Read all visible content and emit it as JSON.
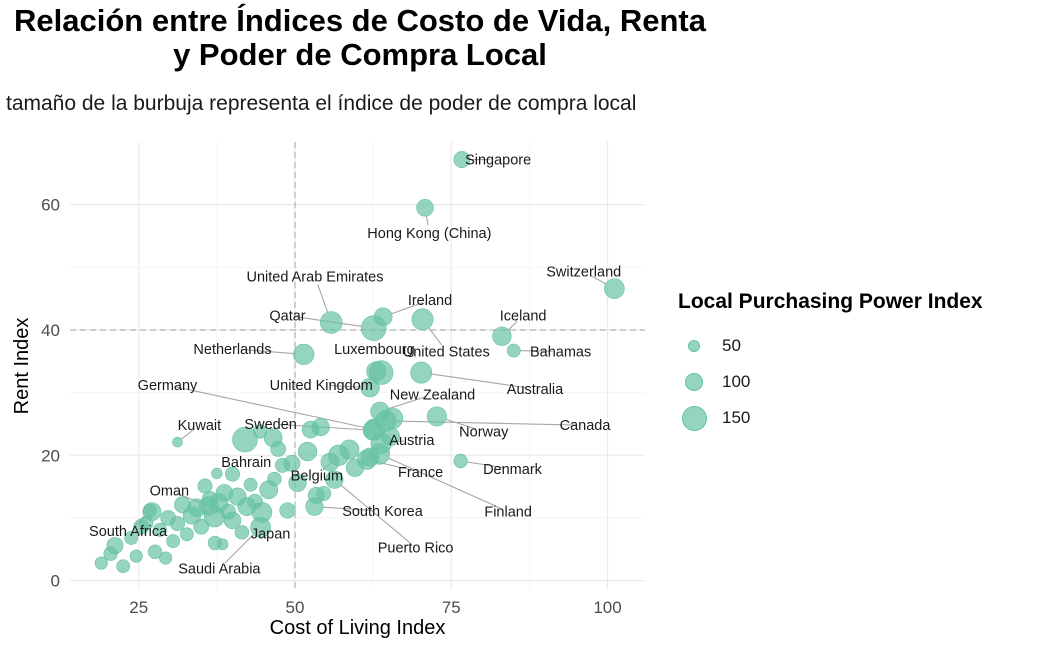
{
  "title_line1": "Relación entre Índices de Costo de Vida, Renta",
  "title_line2": "y Poder de Compra Local",
  "subtitle": "tamaño de la burbuja representa el índice de poder de compra local",
  "colors": {
    "point": "#66c2a5",
    "grid": "#ebebeb",
    "ref_line": "#b3b3b3",
    "label_line": "#a6a6a6"
  },
  "legend": {
    "title": "Local Purchasing Power Index",
    "items": [
      {
        "label": "50",
        "value": 50
      },
      {
        "label": "100",
        "value": 100
      },
      {
        "label": "150",
        "value": 150
      }
    ]
  },
  "chart_data": {
    "type": "scatter",
    "xlabel": "Cost of Living Index",
    "ylabel": "Rent Index",
    "xlim": [
      14,
      106
    ],
    "ylim": [
      -1.5,
      70
    ],
    "xticks": [
      25,
      50,
      75,
      100
    ],
    "yticks": [
      0,
      20,
      40,
      60
    ],
    "grid": true,
    "reference_lines": {
      "x": 50,
      "y": 40
    },
    "labeled_points": [
      {
        "country": "Singapore",
        "x": 76.7,
        "y": 67.2,
        "size": 80,
        "label_x": 82.5,
        "label_y": 67.2
      },
      {
        "country": "Hong Kong (China)",
        "x": 70.8,
        "y": 59.5,
        "size": 85,
        "label_x": 71.5,
        "label_y": 55.5
      },
      {
        "country": "Switzerland",
        "x": 101.1,
        "y": 46.6,
        "size": 110,
        "label_x": 96.2,
        "label_y": 49.3
      },
      {
        "country": "United Arab Emirates",
        "x": 55.8,
        "y": 41.2,
        "size": 125,
        "label_x": 53.2,
        "label_y": 48.5
      },
      {
        "country": "Ireland",
        "x": 64.1,
        "y": 42.1,
        "size": 95,
        "label_x": 71.6,
        "label_y": 44.8
      },
      {
        "country": "Iceland",
        "x": 83.1,
        "y": 39.0,
        "size": 100,
        "label_x": 86.5,
        "label_y": 42.3
      },
      {
        "country": "Qatar",
        "x": 62.6,
        "y": 40.3,
        "size": 150,
        "label_x": 48.8,
        "label_y": 42.3
      },
      {
        "country": "United States",
        "x": 70.4,
        "y": 41.7,
        "size": 120,
        "label_x": 74.2,
        "label_y": 36.6
      },
      {
        "country": "Bahamas",
        "x": 85.0,
        "y": 36.7,
        "size": 55,
        "label_x": 92.5,
        "label_y": 36.6
      },
      {
        "country": "Netherlands",
        "x": 51.4,
        "y": 36.1,
        "size": 115,
        "label_x": 40.0,
        "label_y": 37.0
      },
      {
        "country": "Luxembourg",
        "x": 63.8,
        "y": 33.2,
        "size": 140,
        "label_x": 62.7,
        "label_y": 37.0
      },
      {
        "country": "Australia",
        "x": 70.2,
        "y": 33.2,
        "size": 120,
        "label_x": 88.4,
        "label_y": 30.6
      },
      {
        "country": "Germany",
        "x": 62.7,
        "y": 24.1,
        "size": 120,
        "label_x": 29.6,
        "label_y": 31.2
      },
      {
        "country": "United Kingdom",
        "x": 62.0,
        "y": 30.8,
        "size": 100,
        "label_x": 54.2,
        "label_y": 31.2
      },
      {
        "country": "New Zealand",
        "x": 63.6,
        "y": 27.0,
        "size": 100,
        "label_x": 72.0,
        "label_y": 29.7
      },
      {
        "country": "Canada",
        "x": 64.5,
        "y": 25.5,
        "size": 115,
        "label_x": 96.4,
        "label_y": 24.8
      },
      {
        "country": "Norway",
        "x": 72.7,
        "y": 26.2,
        "size": 105,
        "label_x": 80.2,
        "label_y": 23.8
      },
      {
        "country": "Kuwait",
        "x": 31.2,
        "y": 22.1,
        "size": 30,
        "label_x": 34.7,
        "label_y": 24.8
      },
      {
        "country": "Sweden",
        "x": 62.5,
        "y": 24.0,
        "size": 110,
        "label_x": 46.1,
        "label_y": 25.0
      },
      {
        "country": "Austria",
        "x": 63.8,
        "y": 21.9,
        "size": 115,
        "label_x": 68.7,
        "label_y": 22.4
      },
      {
        "country": "Denmark",
        "x": 76.5,
        "y": 19.1,
        "size": 60,
        "label_x": 84.8,
        "label_y": 17.8
      },
      {
        "country": "Bahrain",
        "x": 40.0,
        "y": 17.0,
        "size": 65,
        "label_x": 42.2,
        "label_y": 18.9
      },
      {
        "country": "France",
        "x": 61.5,
        "y": 19.3,
        "size": 105,
        "label_x": 70.1,
        "label_y": 17.3
      },
      {
        "country": "Belgium",
        "x": 57.0,
        "y": 20.0,
        "size": 115,
        "label_x": 53.5,
        "label_y": 16.8
      },
      {
        "country": "Finland",
        "x": 63.5,
        "y": 20.2,
        "size": 115,
        "label_x": 84.1,
        "label_y": 11.0
      },
      {
        "country": "Oman",
        "x": 36.2,
        "y": 11.9,
        "size": 100,
        "label_x": 29.9,
        "label_y": 14.4
      },
      {
        "country": "South Korea",
        "x": 53.1,
        "y": 11.8,
        "size": 90,
        "label_x": 64.0,
        "label_y": 11.1
      },
      {
        "country": "South Africa",
        "x": 27.1,
        "y": 11.0,
        "size": 95,
        "label_x": 23.3,
        "label_y": 7.9
      },
      {
        "country": "Japan",
        "x": 44.7,
        "y": 10.9,
        "size": 110,
        "label_x": 46.1,
        "label_y": 7.5
      },
      {
        "country": "Puerto Rico",
        "x": 56.3,
        "y": 16.1,
        "size": 90,
        "label_x": 69.3,
        "label_y": 5.3
      },
      {
        "country": "Saudi Arabia",
        "x": 44.5,
        "y": 8.5,
        "size": 110,
        "label_x": 37.9,
        "label_y": 1.9
      }
    ],
    "other_points": [
      {
        "x": 19.0,
        "y": 2.8,
        "size": 50
      },
      {
        "x": 20.5,
        "y": 4.3,
        "size": 60
      },
      {
        "x": 21.2,
        "y": 5.6,
        "size": 80
      },
      {
        "x": 22.5,
        "y": 2.3,
        "size": 55
      },
      {
        "x": 23.8,
        "y": 6.8,
        "size": 55
      },
      {
        "x": 24.6,
        "y": 3.9,
        "size": 50
      },
      {
        "x": 25.4,
        "y": 8.6,
        "size": 70
      },
      {
        "x": 26.2,
        "y": 9.2,
        "size": 60
      },
      {
        "x": 26.8,
        "y": 11.2,
        "size": 55
      },
      {
        "x": 27.6,
        "y": 4.6,
        "size": 60
      },
      {
        "x": 28.4,
        "y": 8.1,
        "size": 55
      },
      {
        "x": 29.3,
        "y": 3.6,
        "size": 50
      },
      {
        "x": 29.7,
        "y": 10.0,
        "size": 70
      },
      {
        "x": 30.5,
        "y": 6.3,
        "size": 55
      },
      {
        "x": 31.2,
        "y": 9.1,
        "size": 65
      },
      {
        "x": 32.0,
        "y": 12.1,
        "size": 80
      },
      {
        "x": 32.7,
        "y": 7.4,
        "size": 55
      },
      {
        "x": 33.5,
        "y": 10.4,
        "size": 90
      },
      {
        "x": 34.3,
        "y": 11.6,
        "size": 95
      },
      {
        "x": 35.0,
        "y": 8.6,
        "size": 70
      },
      {
        "x": 35.6,
        "y": 15.1,
        "size": 65
      },
      {
        "x": 36.4,
        "y": 13.0,
        "size": 75
      },
      {
        "x": 37.1,
        "y": 10.2,
        "size": 115
      },
      {
        "x": 37.8,
        "y": 12.4,
        "size": 100
      },
      {
        "x": 37.2,
        "y": 6.0,
        "size": 60
      },
      {
        "x": 37.5,
        "y": 17.1,
        "size": 35
      },
      {
        "x": 38.4,
        "y": 5.8,
        "size": 40
      },
      {
        "x": 38.7,
        "y": 14.0,
        "size": 85
      },
      {
        "x": 39.3,
        "y": 11.0,
        "size": 70
      },
      {
        "x": 40.0,
        "y": 9.6,
        "size": 85
      },
      {
        "x": 40.8,
        "y": 13.4,
        "size": 90
      },
      {
        "x": 41.5,
        "y": 7.7,
        "size": 60
      },
      {
        "x": 42.0,
        "y": 22.5,
        "size": 150
      },
      {
        "x": 42.3,
        "y": 11.8,
        "size": 95
      },
      {
        "x": 42.9,
        "y": 15.3,
        "size": 55
      },
      {
        "x": 43.6,
        "y": 12.6,
        "size": 70
      },
      {
        "x": 44.4,
        "y": 23.8,
        "size": 60
      },
      {
        "x": 45.8,
        "y": 14.5,
        "size": 95
      },
      {
        "x": 46.7,
        "y": 16.2,
        "size": 60
      },
      {
        "x": 46.5,
        "y": 22.8,
        "size": 95
      },
      {
        "x": 47.3,
        "y": 21.0,
        "size": 70
      },
      {
        "x": 48.0,
        "y": 18.4,
        "size": 65
      },
      {
        "x": 48.8,
        "y": 11.2,
        "size": 75
      },
      {
        "x": 49.5,
        "y": 18.7,
        "size": 80
      },
      {
        "x": 50.4,
        "y": 15.6,
        "size": 90
      },
      {
        "x": 52.0,
        "y": 20.6,
        "size": 100
      },
      {
        "x": 52.5,
        "y": 24.1,
        "size": 85
      },
      {
        "x": 53.4,
        "y": 13.6,
        "size": 80
      },
      {
        "x": 54.1,
        "y": 24.5,
        "size": 90
      },
      {
        "x": 54.6,
        "y": 13.9,
        "size": 65
      },
      {
        "x": 55.6,
        "y": 18.9,
        "size": 95
      },
      {
        "x": 58.7,
        "y": 20.9,
        "size": 105
      },
      {
        "x": 59.6,
        "y": 18.0,
        "size": 90
      },
      {
        "x": 62.0,
        "y": 19.7,
        "size": 95
      },
      {
        "x": 63.0,
        "y": 33.4,
        "size": 105
      },
      {
        "x": 65.3,
        "y": 23.0,
        "size": 95
      },
      {
        "x": 65.6,
        "y": 25.9,
        "size": 115
      }
    ]
  }
}
